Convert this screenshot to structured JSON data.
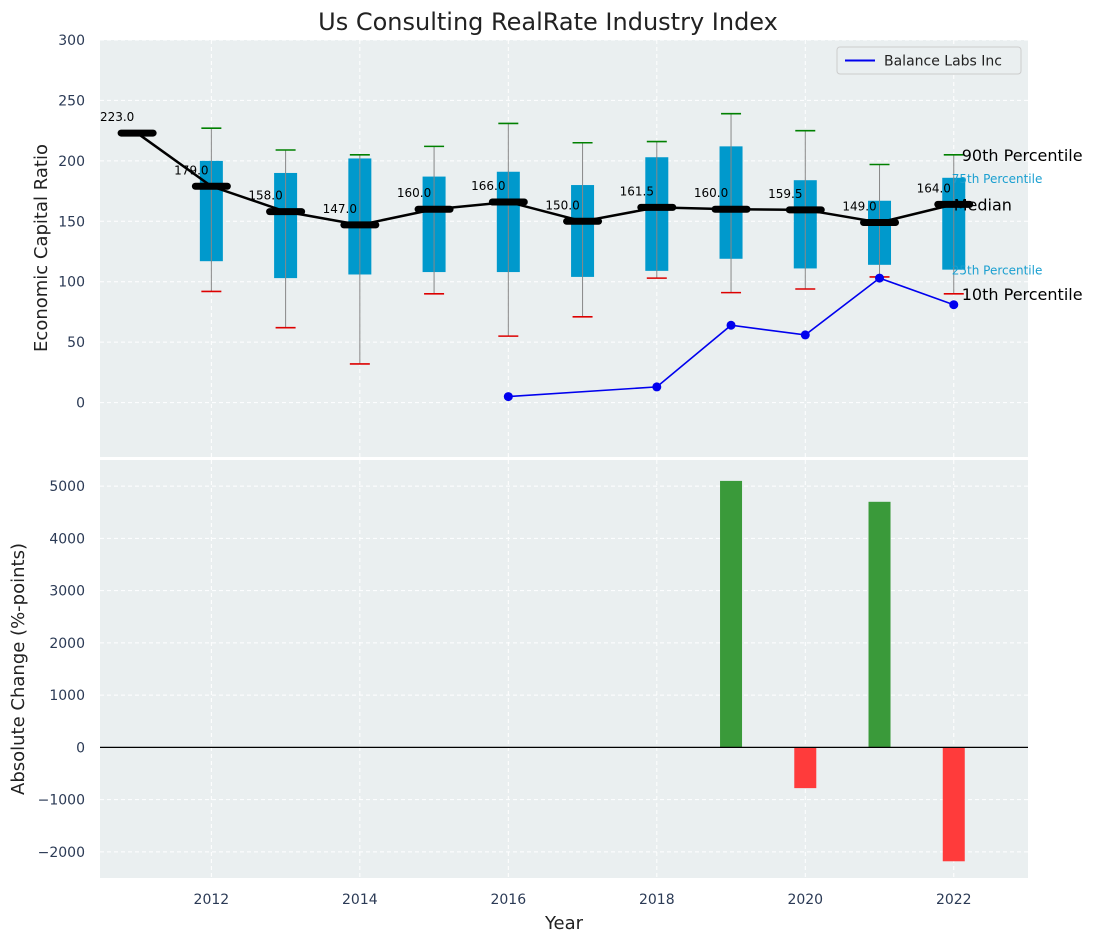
{
  "title": "Us Consulting RealRate Industry Index",
  "chart_data": [
    {
      "type": "box",
      "name": "top-panel",
      "ylabel": "Economic Capital Ratio",
      "ylim": [
        -45,
        300
      ],
      "yticks": [
        0,
        50,
        100,
        150,
        200,
        250,
        300
      ],
      "xlim": [
        2010.5,
        2023
      ],
      "grid": true,
      "years": [
        2011,
        2012,
        2013,
        2014,
        2015,
        2016,
        2017,
        2018,
        2019,
        2020,
        2021,
        2022
      ],
      "p10": [
        223,
        92,
        62,
        32,
        90,
        55,
        71,
        103,
        91,
        94,
        104,
        90
      ],
      "p25": [
        223,
        117,
        103,
        106,
        108,
        108,
        104,
        109,
        119,
        111,
        114,
        110
      ],
      "median": [
        223,
        179,
        158,
        147,
        160,
        166,
        150,
        161.5,
        160,
        159.5,
        149,
        164
      ],
      "p75": [
        223,
        200,
        190,
        202,
        187,
        191,
        180,
        203,
        212,
        184,
        167,
        186
      ],
      "p90": [
        223,
        227,
        209,
        205,
        212,
        231,
        215,
        216,
        239,
        225,
        197,
        205
      ],
      "median_labels": [
        "223.0",
        "179.0",
        "158.0",
        "147.0",
        "160.0",
        "166.0",
        "150.0",
        "161.5",
        "160.0",
        "159.5",
        "149.0",
        "164.0"
      ],
      "percentile_labels": {
        "p90": "90th Percentile",
        "p75": "75th Percentile",
        "median": "Median",
        "p25": "25th Percentile",
        "p10": "10th Percentile"
      },
      "series": [
        {
          "name": "Balance Labs Inc",
          "color": "#0000ee",
          "x": [
            2016,
            2018,
            2019,
            2020,
            2021,
            2022
          ],
          "values": [
            5,
            13,
            64,
            56,
            103,
            81
          ]
        }
      ],
      "legend": "top-right"
    },
    {
      "type": "bar",
      "name": "bottom-panel",
      "xlabel": "Year",
      "ylabel": "Absolute Change (%-points)",
      "ylim": [
        -2500,
        5500
      ],
      "yticks": [
        -2000,
        -1000,
        0,
        1000,
        2000,
        3000,
        4000,
        5000
      ],
      "ytick_labels": [
        "−2000",
        "−1000",
        "0",
        "1000",
        "2000",
        "3000",
        "4000",
        "5000"
      ],
      "xticks": [
        2012,
        2014,
        2016,
        2018,
        2020,
        2022
      ],
      "xticklabels": [
        "2012",
        "2014",
        "2016",
        "2018",
        "2020",
        "2022"
      ],
      "x": [
        2019,
        2020,
        2021,
        2022
      ],
      "values": [
        5100,
        -780,
        4700,
        -2180
      ],
      "positive_color": "#3a9a3a",
      "negative_color": "#ff3b3b"
    }
  ],
  "colors": {
    "box": "#0099cc",
    "median_line": "#000000",
    "whisker_high": "#008000",
    "whisker_low": "#dd0000",
    "panel_bg": "#eaeff0"
  }
}
